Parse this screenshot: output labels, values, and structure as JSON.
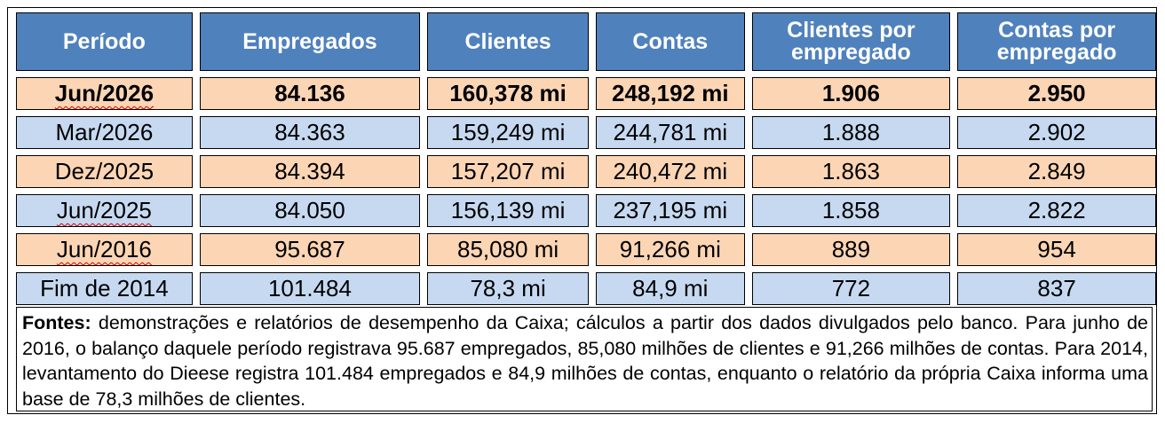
{
  "table": {
    "headers": [
      "Período",
      "Empregados",
      "Clientes",
      "Contas",
      "Clientes por empregado",
      "Contas por empregado"
    ],
    "rows": [
      [
        "Jun/2026",
        "84.136",
        "160,378 mi",
        "248,192 mi",
        "1.906",
        "2.950"
      ],
      [
        "Mar/2026",
        "84.363",
        "159,249 mi",
        "244,781 mi",
        "1.888",
        "2.902"
      ],
      [
        "Dez/2025",
        "84.394",
        "157,207 mi",
        "240,472 mi",
        "1.863",
        "2.849"
      ],
      [
        "Jun/2025",
        "84.050",
        "156,139 mi",
        "237,195 mi",
        "1.858",
        "2.822"
      ],
      [
        "Jun/2016",
        "95.687",
        "85,080 mi",
        "91,266 mi",
        "889",
        "954"
      ],
      [
        "Fim de 2014",
        "101.484",
        "78,3 mi",
        "84,9 mi",
        "772",
        "837"
      ]
    ]
  },
  "sources": {
    "label": "Fontes:",
    "text": " demonstrações e relatórios de desempenho da Caixa; cálculos a partir dos dados divulgados pelo banco. Para junho de 2016, o balanço daquele período registrava 95.687 empregados, 85,080 milhões de clientes e 91,266 milhões de contas. Para 2014, levantamento do Dieese registra 101.484 empregados e 84,9 milhões de contas, enquanto o relatório da própria Caixa informa uma base de 78,3 milhões de clientes."
  },
  "colors": {
    "header_bg": "#4f81bd",
    "header_text": "#ffffff",
    "peach_row": "#fcd5b4",
    "blue_row": "#c6d9f1"
  }
}
